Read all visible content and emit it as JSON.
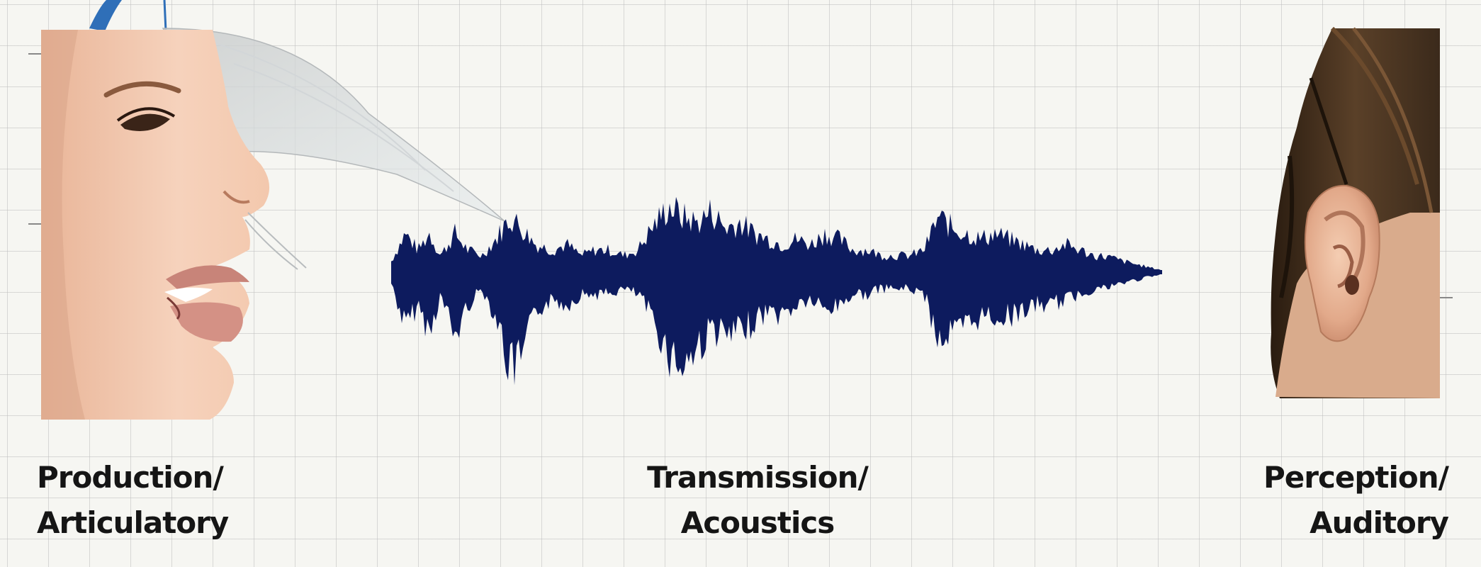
{
  "stages": [
    {
      "id": "production",
      "line1": "Production/",
      "line2": "Articulatory",
      "icon": "face-profile-icon"
    },
    {
      "id": "transmission",
      "line1": "Transmission/",
      "line2": "Acoustics",
      "icon": "sound-waveform-icon"
    },
    {
      "id": "perception",
      "line1": "Perception/",
      "line2": "Auditory",
      "icon": "ear-icon"
    }
  ],
  "colors": {
    "background": "#f6f6f2",
    "grid": "#bebebe",
    "waveform": "#0d1b5e",
    "text": "#151515",
    "skin": "#f1c6aa",
    "hair": "#3b2a1b"
  }
}
